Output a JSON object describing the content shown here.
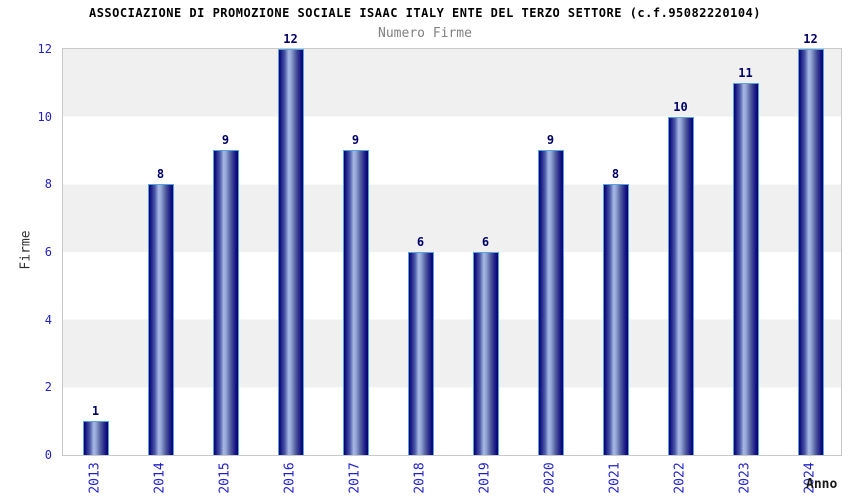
{
  "header": {
    "title": "ASSOCIAZIONE DI PROMOZIONE SOCIALE ISAAC ITALY ENTE DEL TERZO SETTORE (c.f.95082220104)",
    "subtitle": "Numero Firme"
  },
  "chart_data": {
    "type": "bar",
    "title": "ASSOCIAZIONE DI PROMOZIONE SOCIALE ISAAC ITALY ENTE DEL TERZO SETTORE (c.f.95082220104)",
    "subtitle": "Numero Firme",
    "xlabel": "Anno",
    "ylabel": "Firme",
    "categories": [
      "2013",
      "2014",
      "2015",
      "2016",
      "2017",
      "2018",
      "2019",
      "2020",
      "2021",
      "2022",
      "2023",
      "2024"
    ],
    "values": [
      1,
      8,
      9,
      12,
      9,
      6,
      6,
      9,
      8,
      10,
      11,
      12
    ],
    "yticks": [
      0,
      2,
      4,
      6,
      8,
      10,
      12
    ],
    "ylim": [
      0,
      12
    ],
    "grid": "alternating-horizontal-bands-every-2-units",
    "legend_position": "none",
    "colors": {
      "bar_edge": "#000070",
      "bar_highlight": "#a7b8e3",
      "bar_outline": "#55a4e2",
      "value_label": "#000069",
      "tick_label": "#2222cc",
      "band_gray": "#f0f0f0",
      "band_white": "#ffffff",
      "plot_border": "#c9c9c9",
      "title_color": "#000000",
      "subtitle_color": "#818181"
    }
  }
}
